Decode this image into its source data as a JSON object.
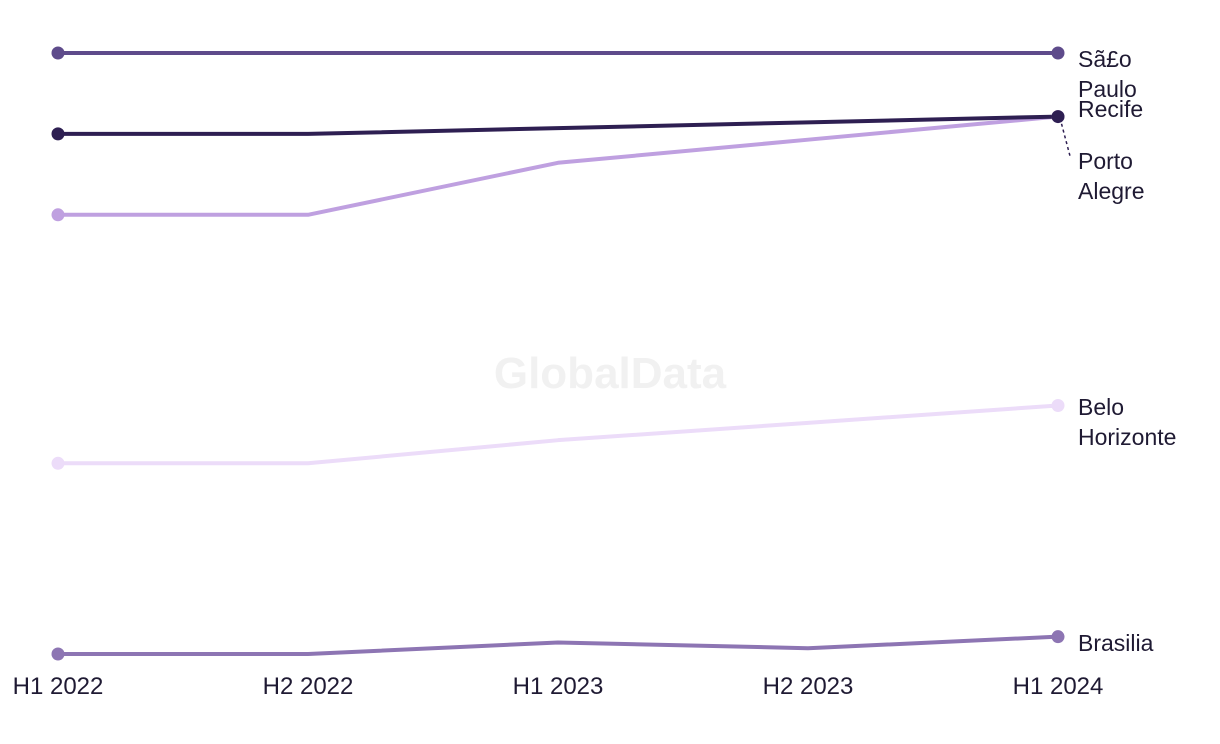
{
  "watermark": "GlobalData",
  "chart_data": {
    "type": "line",
    "x": [
      "H1 2022",
      "H2 2022",
      "H1 2023",
      "H2 2023",
      "H1 2024"
    ],
    "ylim": [
      0,
      100
    ],
    "grid": false,
    "legend": "direct labels at right end",
    "series": [
      {
        "name": "São Paulo",
        "label_lines": [
          "Sã£o",
          "Paulo"
        ],
        "color": "#5e4b8b",
        "values": [
          96,
          96,
          96,
          96,
          96
        ]
      },
      {
        "name": "Recife",
        "label_lines": [
          "Recife"
        ],
        "color": "#2e1f52",
        "values": [
          82,
          82,
          83,
          84,
          85
        ]
      },
      {
        "name": "Porto Alegre",
        "label_lines": [
          "Porto",
          "Alegre"
        ],
        "color": "#bfa0e0",
        "values": [
          68,
          68,
          77,
          81,
          85
        ]
      },
      {
        "name": "Belo Horizonte",
        "label_lines": [
          "Belo",
          "Horizonte"
        ],
        "color": "#ecdcf9",
        "values": [
          25,
          25,
          29,
          32,
          35
        ]
      },
      {
        "name": "Brasilia",
        "label_lines": [
          "Brasilia"
        ],
        "color": "#8d75b3",
        "values": [
          -8,
          -8,
          -6,
          -7,
          -5
        ]
      }
    ]
  }
}
